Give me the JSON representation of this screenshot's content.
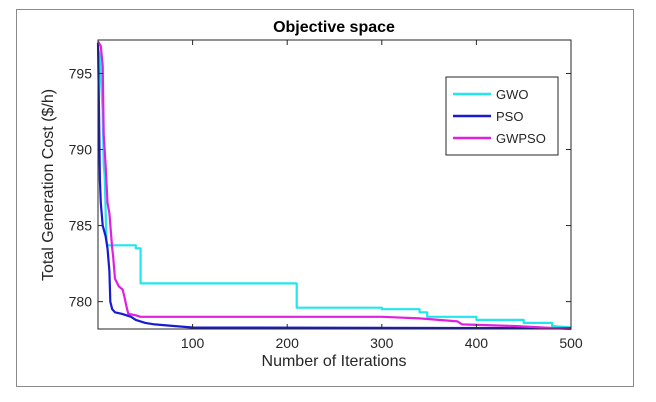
{
  "chart_data": {
    "type": "line",
    "title": "Objective space",
    "xlabel": "Number of Iterations",
    "ylabel": "Total Generation Cost ($/h)",
    "xlim": [
      0,
      500
    ],
    "ylim": [
      778.2,
      797.2
    ],
    "xticks": [
      100,
      200,
      300,
      400,
      500
    ],
    "yticks": [
      780,
      785,
      790,
      795
    ],
    "grid": false,
    "legend_position": "top-right",
    "series": [
      {
        "name": "GWO",
        "color": "#22e6ee",
        "points": [
          [
            0,
            796.6
          ],
          [
            2,
            796.2
          ],
          [
            3,
            794.8
          ],
          [
            5,
            792.5
          ],
          [
            6,
            789.0
          ],
          [
            7,
            788.3
          ],
          [
            9,
            784.0
          ],
          [
            10,
            783.7
          ],
          [
            40,
            783.7
          ],
          [
            40,
            783.5
          ],
          [
            45,
            783.5
          ],
          [
            45,
            781.2
          ],
          [
            210,
            781.2
          ],
          [
            210,
            779.6
          ],
          [
            300,
            779.6
          ],
          [
            300,
            779.5
          ],
          [
            340,
            779.5
          ],
          [
            340,
            779.3
          ],
          [
            348,
            779.3
          ],
          [
            348,
            779.0
          ],
          [
            400,
            779.0
          ],
          [
            400,
            778.8
          ],
          [
            450,
            778.8
          ],
          [
            450,
            778.6
          ],
          [
            480,
            778.6
          ],
          [
            480,
            778.4
          ],
          [
            500,
            778.3
          ]
        ]
      },
      {
        "name": "PSO",
        "color": "#1a1ad4",
        "points": [
          [
            0,
            797.0
          ],
          [
            1,
            793.0
          ],
          [
            2,
            788.0
          ],
          [
            3,
            786.5
          ],
          [
            5,
            785.0
          ],
          [
            8,
            784.3
          ],
          [
            10,
            783.5
          ],
          [
            12,
            782.0
          ],
          [
            13,
            780.0
          ],
          [
            15,
            779.5
          ],
          [
            18,
            779.3
          ],
          [
            25,
            779.2
          ],
          [
            35,
            779.0
          ],
          [
            40,
            778.8
          ],
          [
            50,
            778.6
          ],
          [
            60,
            778.5
          ],
          [
            80,
            778.4
          ],
          [
            100,
            778.3
          ],
          [
            500,
            778.25
          ]
        ]
      },
      {
        "name": "GWPSO",
        "color": "#e020e0",
        "points": [
          [
            0,
            797.1
          ],
          [
            3,
            796.8
          ],
          [
            5,
            795.5
          ],
          [
            6,
            791.0
          ],
          [
            8,
            789.0
          ],
          [
            10,
            786.5
          ],
          [
            12,
            785.8
          ],
          [
            15,
            783.5
          ],
          [
            16,
            783.0
          ],
          [
            18,
            781.5
          ],
          [
            22,
            781.0
          ],
          [
            26,
            780.8
          ],
          [
            28,
            780.3
          ],
          [
            30,
            779.7
          ],
          [
            32,
            779.2
          ],
          [
            40,
            779.1
          ],
          [
            45,
            779.0
          ],
          [
            200,
            779.0
          ],
          [
            300,
            779.0
          ],
          [
            340,
            778.9
          ],
          [
            380,
            778.7
          ],
          [
            385,
            778.5
          ],
          [
            440,
            778.4
          ],
          [
            500,
            778.2
          ]
        ]
      }
    ]
  }
}
